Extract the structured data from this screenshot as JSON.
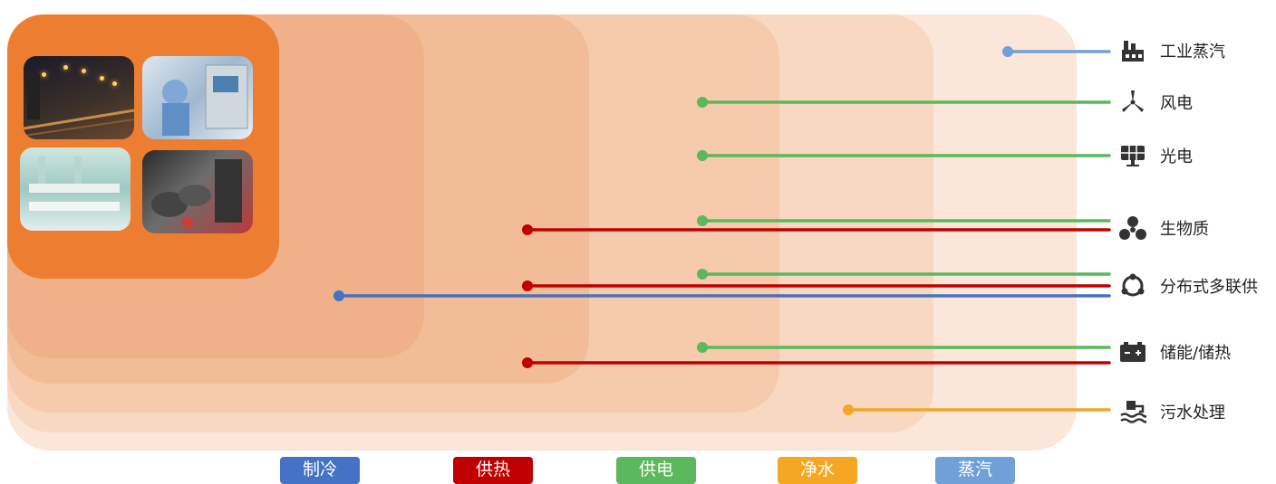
{
  "sources": [
    {
      "id": "steam",
      "label": "工业蒸汽",
      "icon": "factory-icon"
    },
    {
      "id": "wind",
      "label": "风电",
      "icon": "wind-turbine-icon"
    },
    {
      "id": "solar",
      "label": "光电",
      "icon": "solar-panel-icon"
    },
    {
      "id": "biomass",
      "label": "生物质",
      "icon": "biomass-icon"
    },
    {
      "id": "distributed",
      "label": "分布式多联供",
      "icon": "cycle-icon"
    },
    {
      "id": "storage",
      "label": "储能/储热",
      "icon": "battery-icon"
    },
    {
      "id": "sewage",
      "label": "污水处理",
      "icon": "water-treatment-icon"
    }
  ],
  "categories": [
    {
      "id": "cooling",
      "label": "制冷",
      "color": "#4472c4"
    },
    {
      "id": "heating",
      "label": "供热",
      "color": "#c00000"
    },
    {
      "id": "power",
      "label": "供电",
      "color": "#5cb85c"
    },
    {
      "id": "water",
      "label": "净水",
      "color": "#f5a623"
    },
    {
      "id": "steam",
      "label": "蒸汽",
      "color": "#6fa0d8"
    }
  ],
  "links": [
    {
      "source": "steam",
      "category": "steam"
    },
    {
      "source": "wind",
      "category": "power"
    },
    {
      "source": "solar",
      "category": "power"
    },
    {
      "source": "biomass",
      "category": "power"
    },
    {
      "source": "biomass",
      "category": "heating"
    },
    {
      "source": "distributed",
      "category": "power"
    },
    {
      "source": "distributed",
      "category": "heating"
    },
    {
      "source": "distributed",
      "category": "cooling"
    },
    {
      "source": "storage",
      "category": "power"
    },
    {
      "source": "storage",
      "category": "heating"
    },
    {
      "source": "sewage",
      "category": "water"
    }
  ],
  "photos": [
    {
      "id": "street",
      "icon": "street-lights-photo"
    },
    {
      "id": "lab",
      "icon": "laboratory-photo"
    },
    {
      "id": "factory",
      "icon": "factory-floor-photo"
    },
    {
      "id": "machines",
      "icon": "machinery-photo"
    }
  ]
}
